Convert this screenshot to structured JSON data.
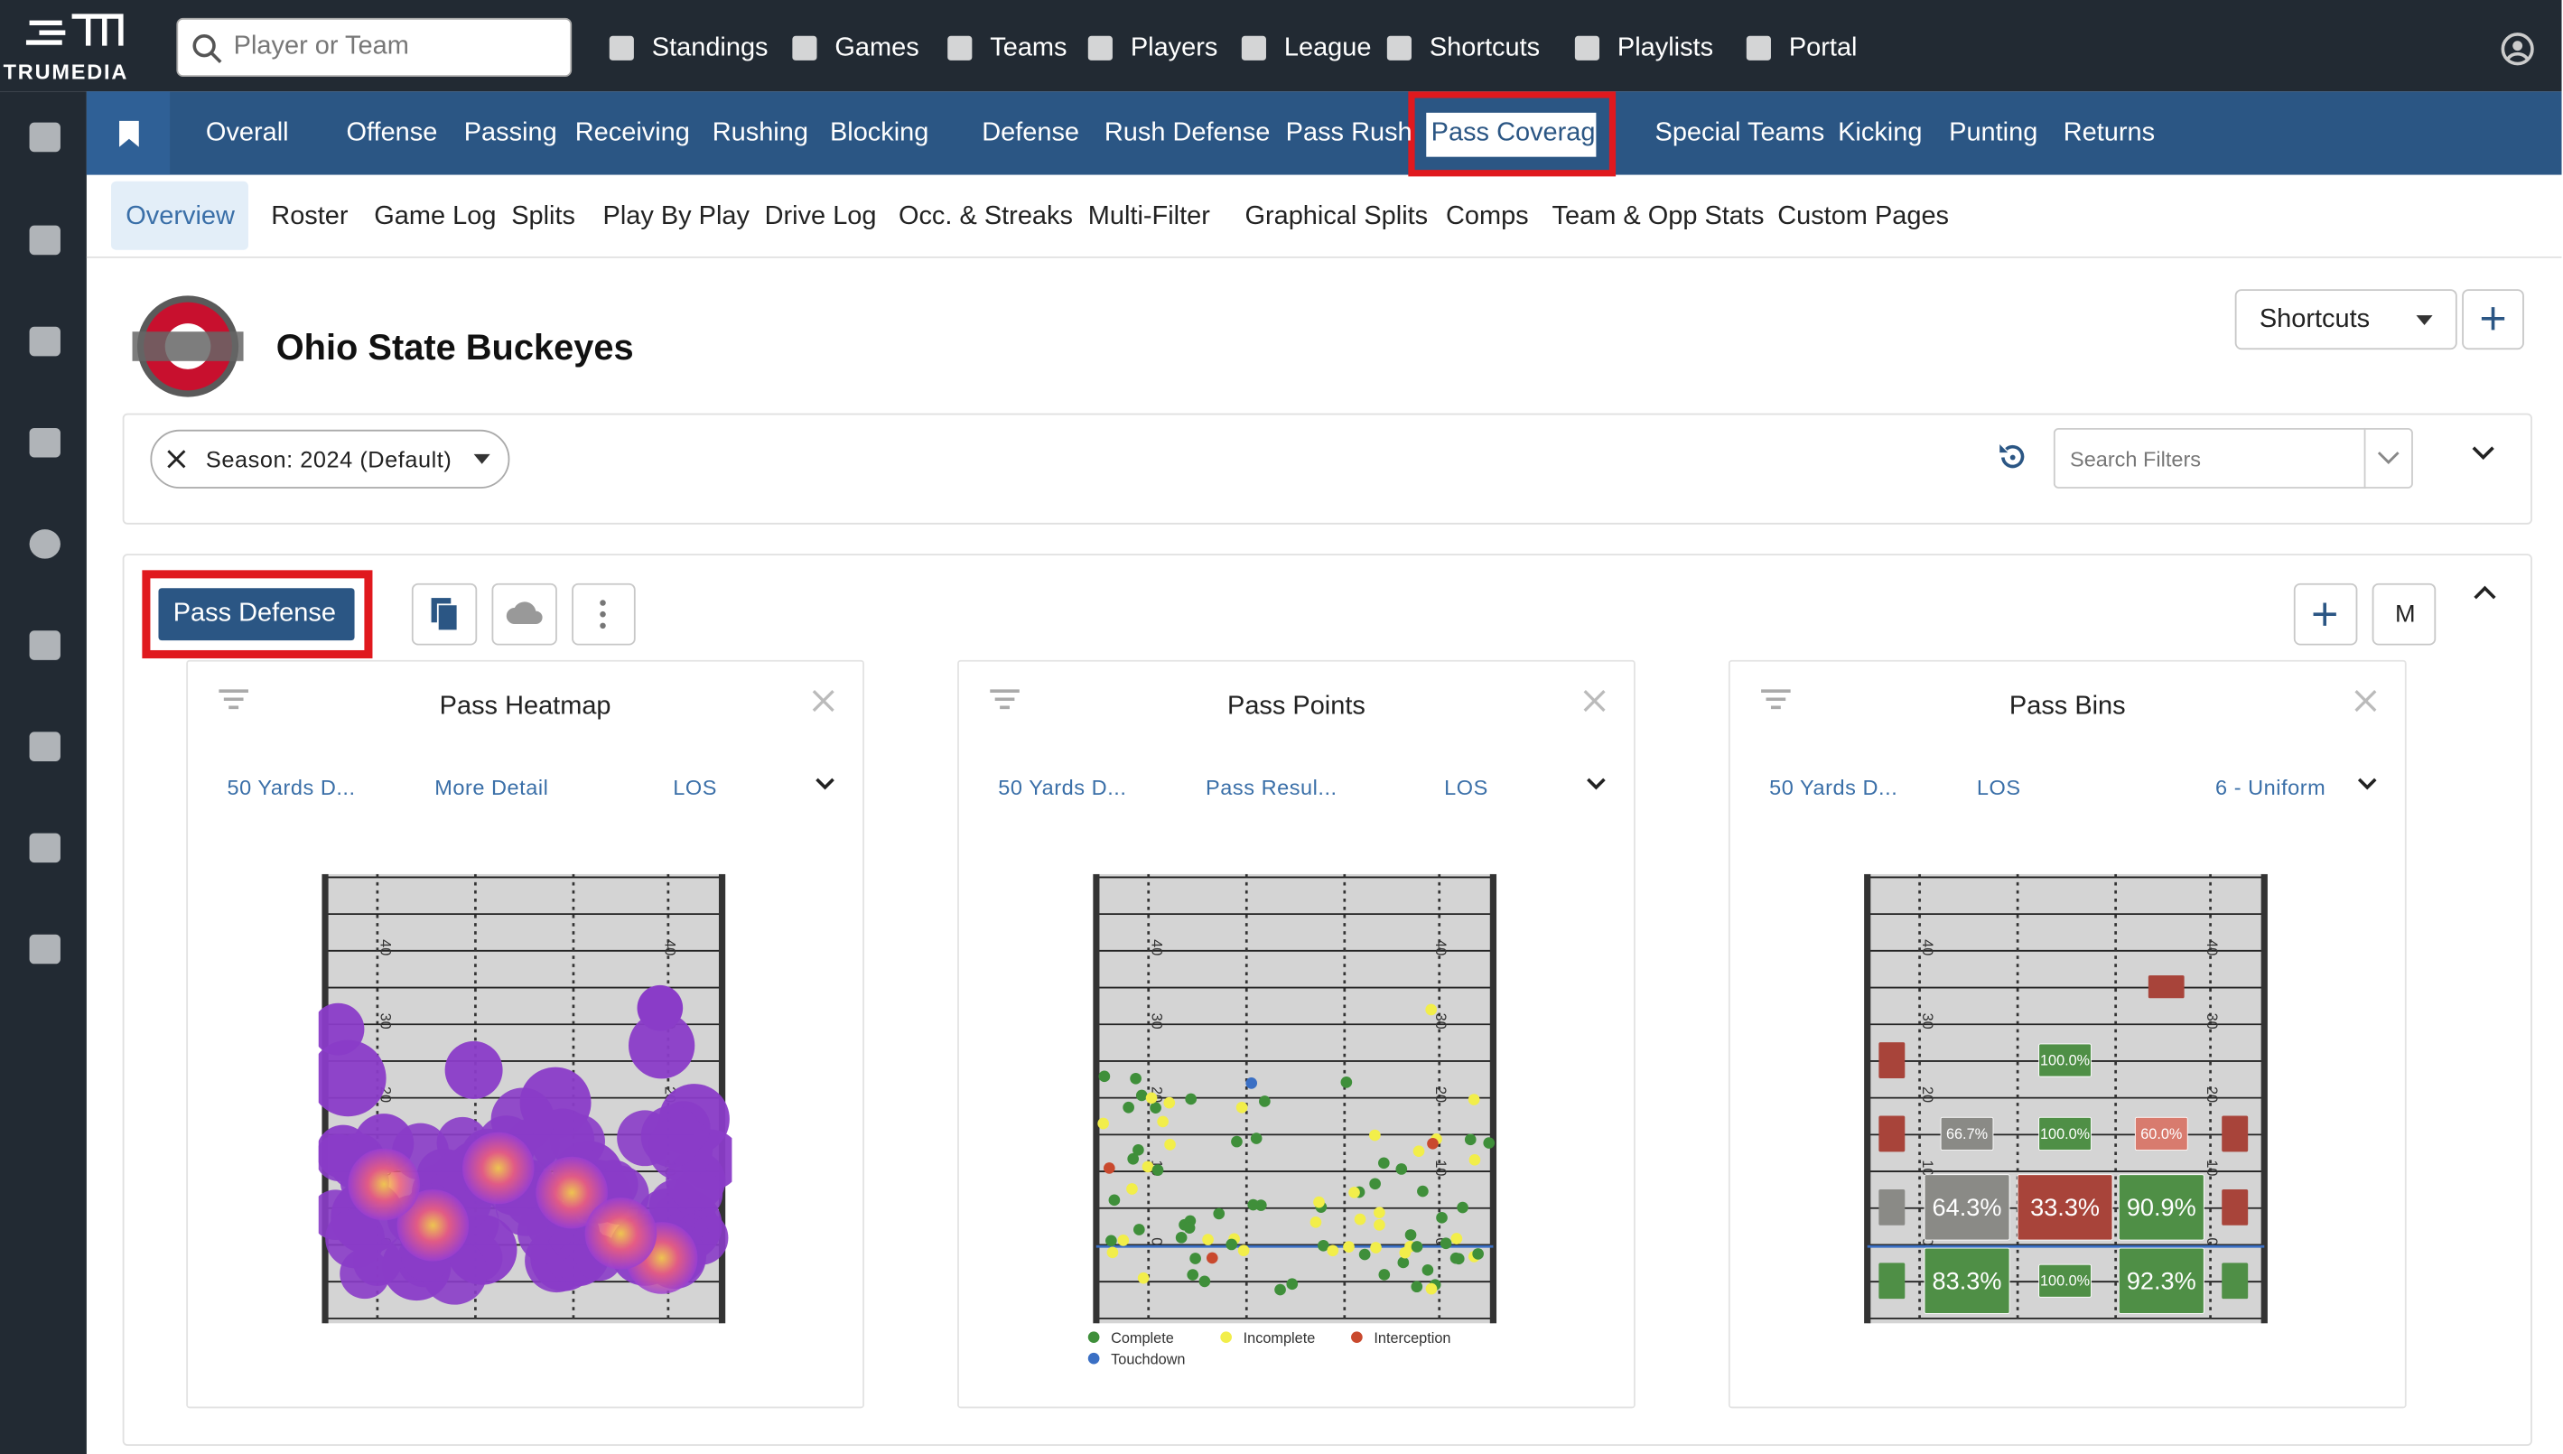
{
  "top_nav": {
    "logo": "TRUMEDIA",
    "search_placeholder": "Player or Team",
    "items": [
      "Standings",
      "Games",
      "Teams",
      "Players",
      "League",
      "Shortcuts",
      "Playlists",
      "Portal"
    ]
  },
  "tabs": [
    "Overall",
    "Offense",
    "Passing",
    "Receiving",
    "Rushing",
    "Blocking",
    "Defense",
    "Rush Defense",
    "Pass Rush",
    "Pass Coverage",
    "Special Teams",
    "Kicking",
    "Punting",
    "Returns"
  ],
  "subtabs": [
    "Overview",
    "Roster",
    "Game Log",
    "Splits",
    "Play By Play",
    "Drive Log",
    "Occ. & Streaks",
    "Multi-Filter",
    "Graphical Splits",
    "Comps",
    "Team & Opp Stats",
    "Custom Pages"
  ],
  "header": {
    "team": "Ohio State Buckeyes",
    "shortcuts_button": "Shortcuts"
  },
  "filters": {
    "season_chip": "Season: 2024 (Default)",
    "search_placeholder": "Search Filters"
  },
  "section": {
    "title": "Pass Defense",
    "m_button": "M"
  },
  "panels": [
    {
      "title": "Pass Heatmap",
      "options": [
        "50 Yards D...",
        "More Detail",
        "LOS"
      ]
    },
    {
      "title": "Pass Points",
      "options": [
        "50 Yards D...",
        "Pass Resul...",
        "LOS"
      ]
    },
    {
      "title": "Pass Bins",
      "options": [
        "50 Yards D...",
        "LOS",
        "6 - Uniform"
      ]
    }
  ],
  "yard_labels": [
    "0",
    "10",
    "20",
    "30",
    "40"
  ],
  "legend": [
    {
      "name": "Complete",
      "color": "#3f8f3a"
    },
    {
      "name": "Incomplete",
      "color": "#f2ee4a"
    },
    {
      "name": "Interception",
      "color": "#c9492e"
    },
    {
      "name": "Touchdown",
      "color": "#3a6fc4"
    }
  ],
  "bins": [
    {
      "label": "100.0%",
      "color": "#4f8f46"
    },
    {
      "label": "66.7%",
      "color": "#8a8a86"
    },
    {
      "label": "100.0%",
      "color": "#4f8f46"
    },
    {
      "label": "60.0%",
      "color": "#d87b6e"
    },
    {
      "label": "64.3%",
      "color": "#8a8a86"
    },
    {
      "label": "33.3%",
      "color": "#a8443a"
    },
    {
      "label": "90.9%",
      "color": "#4f8f46"
    },
    {
      "label": "83.3%",
      "color": "#4f8f46"
    },
    {
      "label": "100.0%",
      "color": "#4f8f46"
    },
    {
      "label": "92.3%",
      "color": "#4f8f46"
    }
  ]
}
